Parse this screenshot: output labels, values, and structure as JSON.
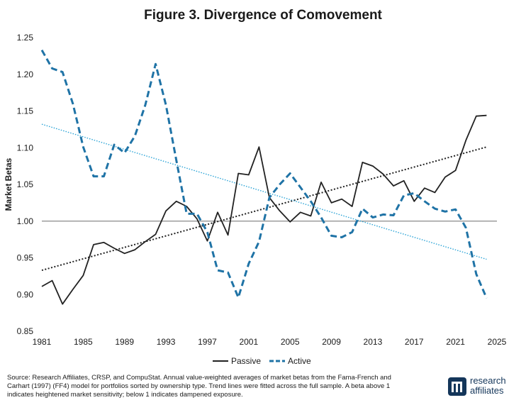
{
  "chart_data": {
    "type": "line",
    "title": "Figure 3. Divergence of Comovement",
    "xlabel": "",
    "ylabel": "Market Betas",
    "xlim": [
      1981,
      2025
    ],
    "ylim": [
      0.85,
      1.25
    ],
    "x_ticks": [
      "1981",
      "1985",
      "1989",
      "1993",
      "1997",
      "2001",
      "2005",
      "2009",
      "2013",
      "2017",
      "2021",
      "2025"
    ],
    "y_ticks": [
      "1.25",
      "1.20",
      "1.15",
      "1.10",
      "1.05",
      "1.00",
      "0.95",
      "0.90",
      "0.85"
    ],
    "reference_line": 1.0,
    "series": [
      {
        "name": "Passive",
        "style": "solid",
        "color": "#222222",
        "x": [
          1981,
          1982,
          1983,
          1984,
          1985,
          1986,
          1987,
          1988,
          1989,
          1990,
          1991,
          1992,
          1993,
          1994,
          1995,
          1996,
          1997,
          1998,
          1999,
          2000,
          2001,
          2002,
          2003,
          2004,
          2005,
          2006,
          2007,
          2008,
          2009,
          2010,
          2011,
          2012,
          2013,
          2014,
          2015,
          2016,
          2017,
          2018,
          2019,
          2020,
          2021,
          2022,
          2023,
          2024
        ],
        "values": [
          0.911,
          0.919,
          0.887,
          0.907,
          0.926,
          0.968,
          0.971,
          0.963,
          0.956,
          0.961,
          0.972,
          0.982,
          1.014,
          1.027,
          1.02,
          1.003,
          0.973,
          1.012,
          0.981,
          1.065,
          1.063,
          1.101,
          1.032,
          1.014,
          0.999,
          1.012,
          1.007,
          1.053,
          1.025,
          1.03,
          1.02,
          1.08,
          1.075,
          1.064,
          1.048,
          1.055,
          1.027,
          1.045,
          1.039,
          1.06,
          1.069,
          1.11,
          1.143,
          1.144
        ]
      },
      {
        "name": "Active",
        "style": "dashed",
        "color": "#1f73a6",
        "x": [
          1981,
          1982,
          1983,
          1984,
          1985,
          1986,
          1987,
          1988,
          1989,
          1990,
          1991,
          1992,
          1993,
          1994,
          1995,
          1996,
          1997,
          1998,
          1999,
          2000,
          2001,
          2002,
          2003,
          2004,
          2005,
          2006,
          2007,
          2008,
          2009,
          2010,
          2011,
          2012,
          2013,
          2014,
          2015,
          2016,
          2017,
          2018,
          2019,
          2020,
          2021,
          2022,
          2023,
          2024
        ],
        "values": [
          1.233,
          1.208,
          1.203,
          1.16,
          1.101,
          1.061,
          1.061,
          1.104,
          1.093,
          1.116,
          1.158,
          1.214,
          1.158,
          1.083,
          1.01,
          1.01,
          0.985,
          0.933,
          0.93,
          0.896,
          0.942,
          0.972,
          1.032,
          1.05,
          1.065,
          1.046,
          1.027,
          1.005,
          0.98,
          0.978,
          0.985,
          1.017,
          1.005,
          1.009,
          1.008,
          1.035,
          1.038,
          1.027,
          1.017,
          1.013,
          1.016,
          0.991,
          0.928,
          0.895
        ]
      }
    ],
    "trendlines": [
      {
        "series": "Passive",
        "style": "dotted",
        "color": "#222222",
        "x": [
          1981,
          2024
        ],
        "values": [
          0.933,
          1.101
        ]
      },
      {
        "series": "Active",
        "style": "dotted",
        "color": "#2aa3d6",
        "x": [
          1981,
          2024
        ],
        "values": [
          1.132,
          0.948
        ]
      }
    ],
    "legend": {
      "position": "bottom-center",
      "entries": [
        "Passive",
        "Active"
      ]
    },
    "grid": false
  },
  "footer": {
    "source_text": "Source: Research Affiliates, CRSP, and CompuStat. Annual value-weighted averages of market betas from the Fama-French and Carhart (1997) (FF4) model for portfolios sorted by ownership type. Trend lines were fitted across the full sample. A beta above 1 indicates heightened market sensitivity; below 1 indicates dampened exposure.",
    "logo_line1": "research",
    "logo_line2": "affiliates"
  },
  "colors": {
    "brand": "#14365a",
    "passive": "#222222",
    "active": "#1f73a6",
    "active_trend": "#2aa3d6"
  }
}
